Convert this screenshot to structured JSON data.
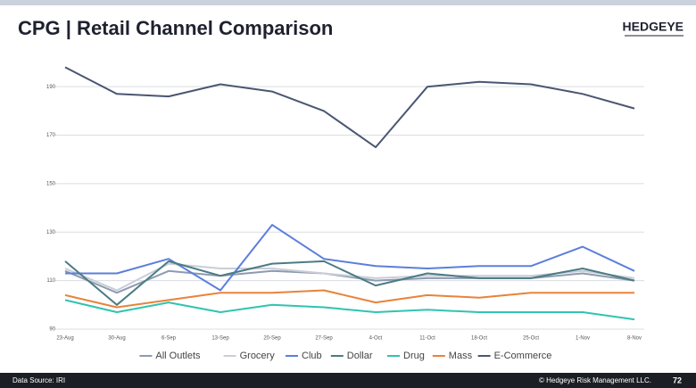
{
  "brand": "HEDGEYE",
  "source": "Data Source: IRI",
  "copyright": "© Hedgeye Risk Management LLC.",
  "page_number": 72,
  "chart_data": {
    "type": "line",
    "title": "CPG | Retail Channel Comparison",
    "categories": [
      "23-Aug",
      "30-Aug",
      "6-Sep",
      "13-Sep",
      "20-Sep",
      "27-Sep",
      "4-Oct",
      "11-Oct",
      "18-Oct",
      "25-Oct",
      "1-Nov",
      "8-Nov"
    ],
    "ylim": [
      90,
      200
    ],
    "yticks": [
      90,
      110,
      130,
      150,
      170,
      190
    ],
    "grid": true,
    "legend": "bottom",
    "series": [
      {
        "name": "All Outlets",
        "color": "#8e9ab0",
        "values": [
          114,
          105,
          114,
          112,
          114,
          113,
          110,
          111,
          111,
          111,
          113,
          110
        ]
      },
      {
        "name": "Grocery",
        "color": "#c8cdd8",
        "values": [
          115,
          106,
          117,
          115,
          115,
          113,
          111,
          112,
          112,
          112,
          114,
          111
        ]
      },
      {
        "name": "Club",
        "color": "#5b7fdc",
        "values": [
          113,
          113,
          119,
          106,
          133,
          119,
          116,
          115,
          116,
          116,
          124,
          114
        ]
      },
      {
        "name": "Dollar",
        "color": "#4b7c84",
        "values": [
          118,
          100,
          118,
          112,
          117,
          118,
          108,
          113,
          111,
          111,
          115,
          110
        ]
      },
      {
        "name": "Drug",
        "color": "#2fc4b0",
        "values": [
          102,
          97,
          101,
          97,
          100,
          99,
          97,
          98,
          97,
          97,
          97,
          94
        ]
      },
      {
        "name": "Mass",
        "color": "#e8833a",
        "values": [
          104,
          99,
          102,
          105,
          105,
          106,
          101,
          104,
          103,
          105,
          105,
          105
        ]
      },
      {
        "name": "E-Commerce",
        "color": "#4a5672",
        "values": [
          198,
          187,
          186,
          191,
          188,
          180,
          165,
          190,
          192,
          191,
          187,
          181
        ]
      }
    ]
  }
}
